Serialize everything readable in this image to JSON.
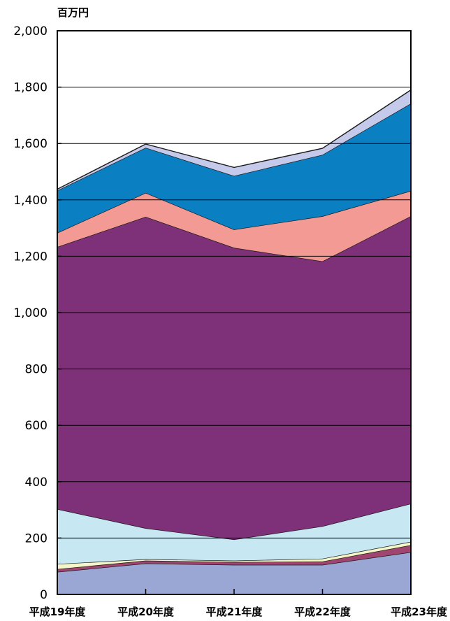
{
  "chart_data": {
    "type": "area",
    "stacked": true,
    "unit": "百万円",
    "categories": [
      "平成19年度",
      "平成20年度",
      "平成21年度",
      "平成22年度",
      "平成23年度"
    ],
    "ylim": [
      0,
      2000
    ],
    "yticks": [
      0,
      200,
      400,
      600,
      800,
      1000,
      1200,
      1400,
      1600,
      1800,
      2000
    ],
    "ytick_labels": [
      "0",
      "200",
      "400",
      "600",
      "800",
      "1,000",
      "1,200",
      "1,400",
      "1,600",
      "1,800",
      "2,000"
    ],
    "grid": true,
    "series": [
      {
        "color": "#9aa6d4",
        "values": [
          80,
          110,
          105,
          105,
          150
        ]
      },
      {
        "color": "#a0456f",
        "values": [
          10,
          10,
          10,
          12,
          25
        ]
      },
      {
        "color": "#f4f6c8",
        "values": [
          18,
          5,
          5,
          10,
          12
        ]
      },
      {
        "color": "#c7e7f2",
        "values": [
          195,
          110,
          75,
          115,
          135
        ]
      },
      {
        "color": "#7e3078",
        "values": [
          930,
          1105,
          1035,
          940,
          1020
        ]
      },
      {
        "color": "#f29a93",
        "values": [
          50,
          85,
          65,
          160,
          90
        ]
      },
      {
        "color": "#0a7fc2",
        "values": [
          150,
          160,
          190,
          218,
          310
        ]
      },
      {
        "color": "#c5c9ea",
        "values": [
          5,
          13,
          30,
          23,
          48
        ]
      }
    ]
  }
}
